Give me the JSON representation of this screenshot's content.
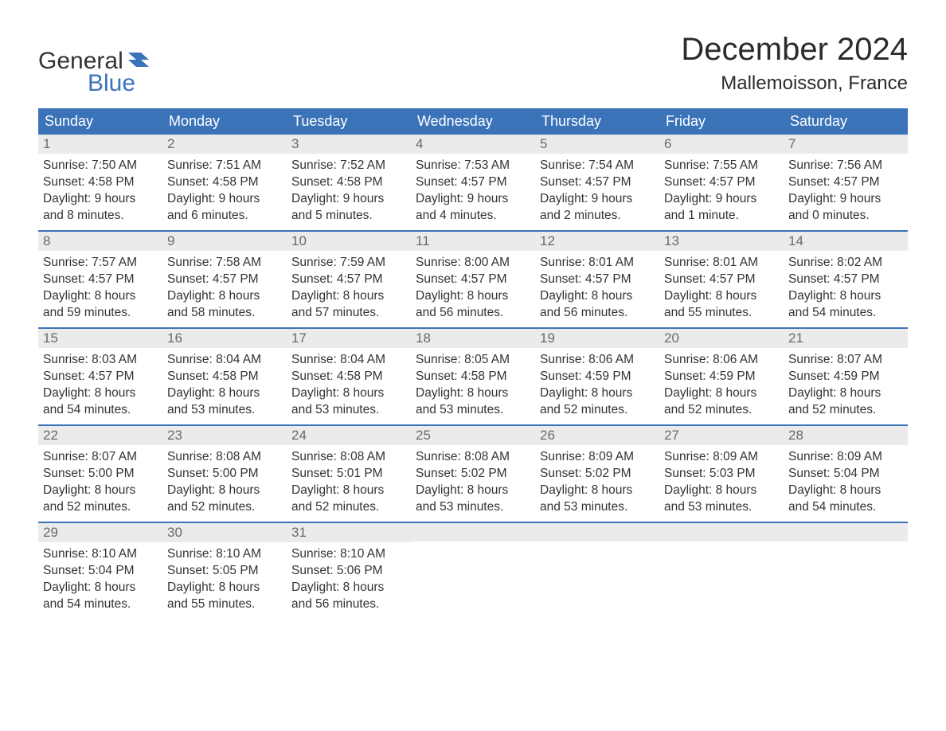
{
  "logo": {
    "text1": "General",
    "text2": "Blue",
    "text1_color": "#333333",
    "text2_color": "#3b73b9",
    "flag_color": "#3b73b9"
  },
  "header": {
    "title": "December 2024",
    "location": "Mallemoisson, France"
  },
  "colors": {
    "header_bg": "#3b73b9",
    "header_text": "#ffffff",
    "daynum_bg": "#ebebeb",
    "daynum_text": "#6a6a6a",
    "body_text": "#333333",
    "week_border": "#3b73b9",
    "background": "#ffffff"
  },
  "weekdays": [
    "Sunday",
    "Monday",
    "Tuesday",
    "Wednesday",
    "Thursday",
    "Friday",
    "Saturday"
  ],
  "days": [
    {
      "n": "1",
      "sunrise": "7:50 AM",
      "sunset": "4:58 PM",
      "daylight": "9 hours and 8 minutes."
    },
    {
      "n": "2",
      "sunrise": "7:51 AM",
      "sunset": "4:58 PM",
      "daylight": "9 hours and 6 minutes."
    },
    {
      "n": "3",
      "sunrise": "7:52 AM",
      "sunset": "4:58 PM",
      "daylight": "9 hours and 5 minutes."
    },
    {
      "n": "4",
      "sunrise": "7:53 AM",
      "sunset": "4:57 PM",
      "daylight": "9 hours and 4 minutes."
    },
    {
      "n": "5",
      "sunrise": "7:54 AM",
      "sunset": "4:57 PM",
      "daylight": "9 hours and 2 minutes."
    },
    {
      "n": "6",
      "sunrise": "7:55 AM",
      "sunset": "4:57 PM",
      "daylight": "9 hours and 1 minute."
    },
    {
      "n": "7",
      "sunrise": "7:56 AM",
      "sunset": "4:57 PM",
      "daylight": "9 hours and 0 minutes."
    },
    {
      "n": "8",
      "sunrise": "7:57 AM",
      "sunset": "4:57 PM",
      "daylight": "8 hours and 59 minutes."
    },
    {
      "n": "9",
      "sunrise": "7:58 AM",
      "sunset": "4:57 PM",
      "daylight": "8 hours and 58 minutes."
    },
    {
      "n": "10",
      "sunrise": "7:59 AM",
      "sunset": "4:57 PM",
      "daylight": "8 hours and 57 minutes."
    },
    {
      "n": "11",
      "sunrise": "8:00 AM",
      "sunset": "4:57 PM",
      "daylight": "8 hours and 56 minutes."
    },
    {
      "n": "12",
      "sunrise": "8:01 AM",
      "sunset": "4:57 PM",
      "daylight": "8 hours and 56 minutes."
    },
    {
      "n": "13",
      "sunrise": "8:01 AM",
      "sunset": "4:57 PM",
      "daylight": "8 hours and 55 minutes."
    },
    {
      "n": "14",
      "sunrise": "8:02 AM",
      "sunset": "4:57 PM",
      "daylight": "8 hours and 54 minutes."
    },
    {
      "n": "15",
      "sunrise": "8:03 AM",
      "sunset": "4:57 PM",
      "daylight": "8 hours and 54 minutes."
    },
    {
      "n": "16",
      "sunrise": "8:04 AM",
      "sunset": "4:58 PM",
      "daylight": "8 hours and 53 minutes."
    },
    {
      "n": "17",
      "sunrise": "8:04 AM",
      "sunset": "4:58 PM",
      "daylight": "8 hours and 53 minutes."
    },
    {
      "n": "18",
      "sunrise": "8:05 AM",
      "sunset": "4:58 PM",
      "daylight": "8 hours and 53 minutes."
    },
    {
      "n": "19",
      "sunrise": "8:06 AM",
      "sunset": "4:59 PM",
      "daylight": "8 hours and 52 minutes."
    },
    {
      "n": "20",
      "sunrise": "8:06 AM",
      "sunset": "4:59 PM",
      "daylight": "8 hours and 52 minutes."
    },
    {
      "n": "21",
      "sunrise": "8:07 AM",
      "sunset": "4:59 PM",
      "daylight": "8 hours and 52 minutes."
    },
    {
      "n": "22",
      "sunrise": "8:07 AM",
      "sunset": "5:00 PM",
      "daylight": "8 hours and 52 minutes."
    },
    {
      "n": "23",
      "sunrise": "8:08 AM",
      "sunset": "5:00 PM",
      "daylight": "8 hours and 52 minutes."
    },
    {
      "n": "24",
      "sunrise": "8:08 AM",
      "sunset": "5:01 PM",
      "daylight": "8 hours and 52 minutes."
    },
    {
      "n": "25",
      "sunrise": "8:08 AM",
      "sunset": "5:02 PM",
      "daylight": "8 hours and 53 minutes."
    },
    {
      "n": "26",
      "sunrise": "8:09 AM",
      "sunset": "5:02 PM",
      "daylight": "8 hours and 53 minutes."
    },
    {
      "n": "27",
      "sunrise": "8:09 AM",
      "sunset": "5:03 PM",
      "daylight": "8 hours and 53 minutes."
    },
    {
      "n": "28",
      "sunrise": "8:09 AM",
      "sunset": "5:04 PM",
      "daylight": "8 hours and 54 minutes."
    },
    {
      "n": "29",
      "sunrise": "8:10 AM",
      "sunset": "5:04 PM",
      "daylight": "8 hours and 54 minutes."
    },
    {
      "n": "30",
      "sunrise": "8:10 AM",
      "sunset": "5:05 PM",
      "daylight": "8 hours and 55 minutes."
    },
    {
      "n": "31",
      "sunrise": "8:10 AM",
      "sunset": "5:06 PM",
      "daylight": "8 hours and 56 minutes."
    }
  ],
  "labels": {
    "sunrise": "Sunrise: ",
    "sunset": "Sunset: ",
    "daylight": "Daylight: "
  },
  "layout": {
    "first_weekday_index": 0,
    "trailing_empty_cells": 4,
    "columns": 7
  },
  "typography": {
    "title_fontsize": 40,
    "location_fontsize": 24,
    "weekday_fontsize": 18,
    "daynum_fontsize": 17,
    "detail_fontsize": 15.5,
    "logo_fontsize": 30
  }
}
